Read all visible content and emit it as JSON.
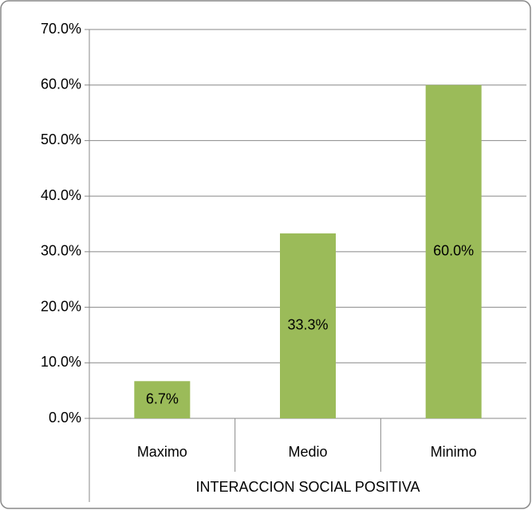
{
  "chart_data": {
    "type": "bar",
    "xlabel": "INTERACCION SOCIAL POSITIVA",
    "categories": [
      "Maximo",
      "Medio",
      "Minimo"
    ],
    "values": [
      6.7,
      33.3,
      60.0
    ],
    "value_labels": [
      "6.7%",
      "33.3%",
      "60.0%"
    ],
    "color": "#9bbb59",
    "ylim": [
      0,
      70
    ],
    "yticks": [
      {
        "value": 0,
        "label": "0.0%"
      },
      {
        "value": 10,
        "label": "10.0%"
      },
      {
        "value": 20,
        "label": "20.0%"
      },
      {
        "value": 30,
        "label": "30.0%"
      },
      {
        "value": 40,
        "label": "40.0%"
      },
      {
        "value": 50,
        "label": "50.0%"
      },
      {
        "value": 60,
        "label": "60.0%"
      },
      {
        "value": 70,
        "label": "70.0%"
      }
    ],
    "grid": true
  }
}
